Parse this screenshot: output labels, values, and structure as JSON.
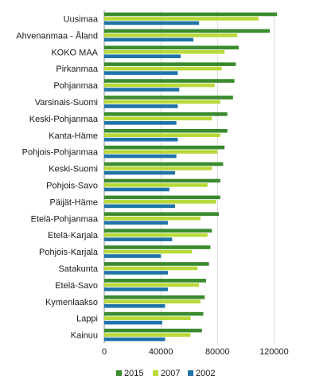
{
  "chart_data": {
    "type": "bar",
    "orientation": "horizontal",
    "title": "",
    "xlabel": "",
    "ylabel": "",
    "xlim": [
      0,
      140000
    ],
    "xticks": [
      0,
      40000,
      80000,
      120000
    ],
    "xtick_labels": [
      "0",
      "40000",
      "80000",
      "120000"
    ],
    "grid": true,
    "legend_position": "bottom",
    "categories": [
      "Uusimaa",
      "Ahvenanmaa - Åland",
      "KOKO MAA",
      "Pirkanmaa",
      "Pohjanmaa",
      "Varsinais-Suomi",
      "Keski-Pohjanmaa",
      "Kanta-Häme",
      "Pohjois-Pohjanmaa",
      "Keski-Suomi",
      "Pohjois-Savo",
      "Päijät-Häme",
      "Etelä-Pohjanmaa",
      "Etelä-Karjala",
      "Pohjois-Karjala",
      "Satakunta",
      "Etelä-Savo",
      "Kymenlaakso",
      "Lappi",
      "Kainuu"
    ],
    "series": [
      {
        "name": "2015",
        "color": "#3a8a2e",
        "values": [
          122000,
          117000,
          95000,
          93000,
          92000,
          91000,
          87000,
          87000,
          85000,
          84000,
          82000,
          82000,
          81000,
          76000,
          75000,
          74000,
          72000,
          71000,
          70000,
          69000
        ]
      },
      {
        "name": "2007",
        "color": "#b8d939",
        "values": [
          109000,
          94000,
          85000,
          83000,
          78000,
          82000,
          76000,
          82000,
          80000,
          76000,
          73000,
          79000,
          68000,
          73000,
          62000,
          66000,
          67000,
          68000,
          61000,
          61000
        ]
      },
      {
        "name": "2002",
        "color": "#1f74a8",
        "values": [
          67000,
          63000,
          54000,
          52000,
          53000,
          52000,
          51000,
          52000,
          51000,
          50000,
          46000,
          50000,
          45000,
          48000,
          40000,
          45000,
          45000,
          43000,
          41000,
          43000
        ]
      }
    ]
  }
}
